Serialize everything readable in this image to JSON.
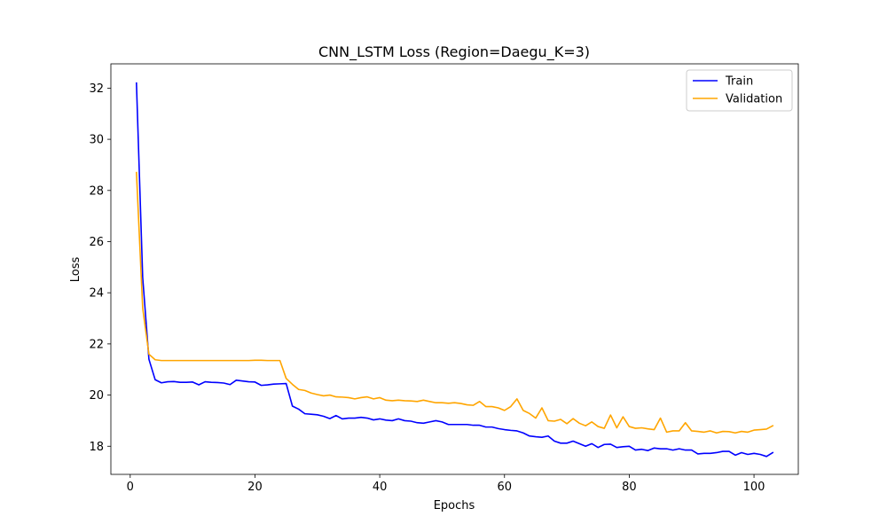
{
  "chart_data": {
    "type": "line",
    "title": "CNN_LSTM Loss (Region=Daegu_K=3)",
    "xlabel": "Epochs",
    "ylabel": "Loss",
    "xlim": [
      -3.1,
      107.1
    ],
    "ylim": [
      16.9,
      32.95
    ],
    "xticks": [
      0,
      20,
      40,
      60,
      80,
      100
    ],
    "yticks": [
      18,
      20,
      22,
      24,
      26,
      28,
      30,
      32
    ],
    "grid": false,
    "legend_position": "upper right",
    "colors": {
      "train": "#0000ff",
      "validation": "#ffa500",
      "axes": "#000000"
    },
    "series": [
      {
        "name": "Train",
        "color": "#0000ff",
        "x": [
          1,
          2,
          3,
          4,
          5,
          6,
          7,
          8,
          9,
          10,
          11,
          12,
          13,
          14,
          15,
          16,
          17,
          18,
          19,
          20,
          21,
          22,
          23,
          24,
          25,
          26,
          27,
          28,
          29,
          30,
          31,
          32,
          33,
          34,
          35,
          36,
          37,
          38,
          39,
          40,
          41,
          42,
          43,
          44,
          45,
          46,
          47,
          48,
          49,
          50,
          51,
          52,
          53,
          54,
          55,
          56,
          57,
          58,
          59,
          60,
          61,
          62,
          63,
          64,
          65,
          66,
          67,
          68,
          69,
          70,
          71,
          72,
          73,
          74,
          75,
          76,
          77,
          78,
          79,
          80,
          81,
          82,
          83,
          84,
          85,
          86,
          87,
          88,
          89,
          90,
          91,
          92,
          93,
          94,
          95,
          96,
          97,
          98,
          99,
          100,
          101,
          102,
          103
        ],
        "values": [
          32.2,
          24.6,
          21.4,
          20.6,
          20.48,
          20.52,
          20.53,
          20.5,
          20.5,
          20.51,
          20.4,
          20.52,
          20.5,
          20.49,
          20.47,
          20.41,
          20.58,
          20.55,
          20.52,
          20.51,
          20.38,
          20.4,
          20.43,
          20.44,
          20.45,
          19.57,
          19.45,
          19.27,
          19.25,
          19.23,
          19.17,
          19.08,
          19.2,
          19.07,
          19.1,
          19.1,
          19.13,
          19.1,
          19.03,
          19.07,
          19.02,
          19.0,
          19.07,
          19.0,
          18.98,
          18.92,
          18.9,
          18.95,
          19.0,
          18.95,
          18.85,
          18.85,
          18.85,
          18.85,
          18.82,
          18.82,
          18.75,
          18.75,
          18.69,
          18.65,
          18.62,
          18.6,
          18.52,
          18.4,
          18.37,
          18.35,
          18.4,
          18.2,
          18.12,
          18.12,
          18.2,
          18.1,
          18.0,
          18.1,
          17.95,
          18.07,
          18.08,
          17.95,
          17.98,
          18.0,
          17.85,
          17.88,
          17.83,
          17.93,
          17.9,
          17.9,
          17.85,
          17.9,
          17.85,
          17.85,
          17.7,
          17.72,
          17.72,
          17.75,
          17.8,
          17.8,
          17.65,
          17.75,
          17.68,
          17.72,
          17.68,
          17.6,
          17.75
        ]
      },
      {
        "name": "Validation",
        "color": "#ffa500",
        "x": [
          1,
          2,
          3,
          4,
          5,
          6,
          7,
          8,
          9,
          10,
          11,
          12,
          13,
          14,
          15,
          16,
          17,
          18,
          19,
          20,
          21,
          22,
          23,
          24,
          25,
          26,
          27,
          28,
          29,
          30,
          31,
          32,
          33,
          34,
          35,
          36,
          37,
          38,
          39,
          40,
          41,
          42,
          43,
          44,
          45,
          46,
          47,
          48,
          49,
          50,
          51,
          52,
          53,
          54,
          55,
          56,
          57,
          58,
          59,
          60,
          61,
          62,
          63,
          64,
          65,
          66,
          67,
          68,
          69,
          70,
          71,
          72,
          73,
          74,
          75,
          76,
          77,
          78,
          79,
          80,
          81,
          82,
          83,
          84,
          85,
          86,
          87,
          88,
          89,
          90,
          91,
          92,
          93,
          94,
          95,
          96,
          97,
          98,
          99,
          100,
          101,
          102,
          103
        ],
        "values": [
          28.7,
          23.4,
          21.6,
          21.38,
          21.35,
          21.35,
          21.35,
          21.35,
          21.35,
          21.35,
          21.35,
          21.35,
          21.35,
          21.35,
          21.35,
          21.35,
          21.35,
          21.35,
          21.35,
          21.36,
          21.36,
          21.35,
          21.35,
          21.35,
          20.65,
          20.42,
          20.22,
          20.18,
          20.08,
          20.02,
          19.97,
          20.0,
          19.93,
          19.92,
          19.9,
          19.85,
          19.9,
          19.93,
          19.85,
          19.9,
          19.8,
          19.78,
          19.8,
          19.78,
          19.77,
          19.75,
          19.8,
          19.75,
          19.7,
          19.7,
          19.68,
          19.7,
          19.67,
          19.62,
          19.6,
          19.75,
          19.55,
          19.55,
          19.5,
          19.4,
          19.55,
          19.85,
          19.4,
          19.28,
          19.1,
          19.5,
          19.0,
          18.98,
          19.05,
          18.88,
          19.08,
          18.9,
          18.8,
          18.95,
          18.77,
          18.7,
          19.22,
          18.72,
          19.15,
          18.77,
          18.7,
          18.72,
          18.68,
          18.65,
          19.1,
          18.55,
          18.6,
          18.6,
          18.92,
          18.6,
          18.58,
          18.55,
          18.6,
          18.52,
          18.58,
          18.57,
          18.52,
          18.58,
          18.55,
          18.63,
          18.65,
          18.67,
          18.8
        ]
      }
    ]
  }
}
